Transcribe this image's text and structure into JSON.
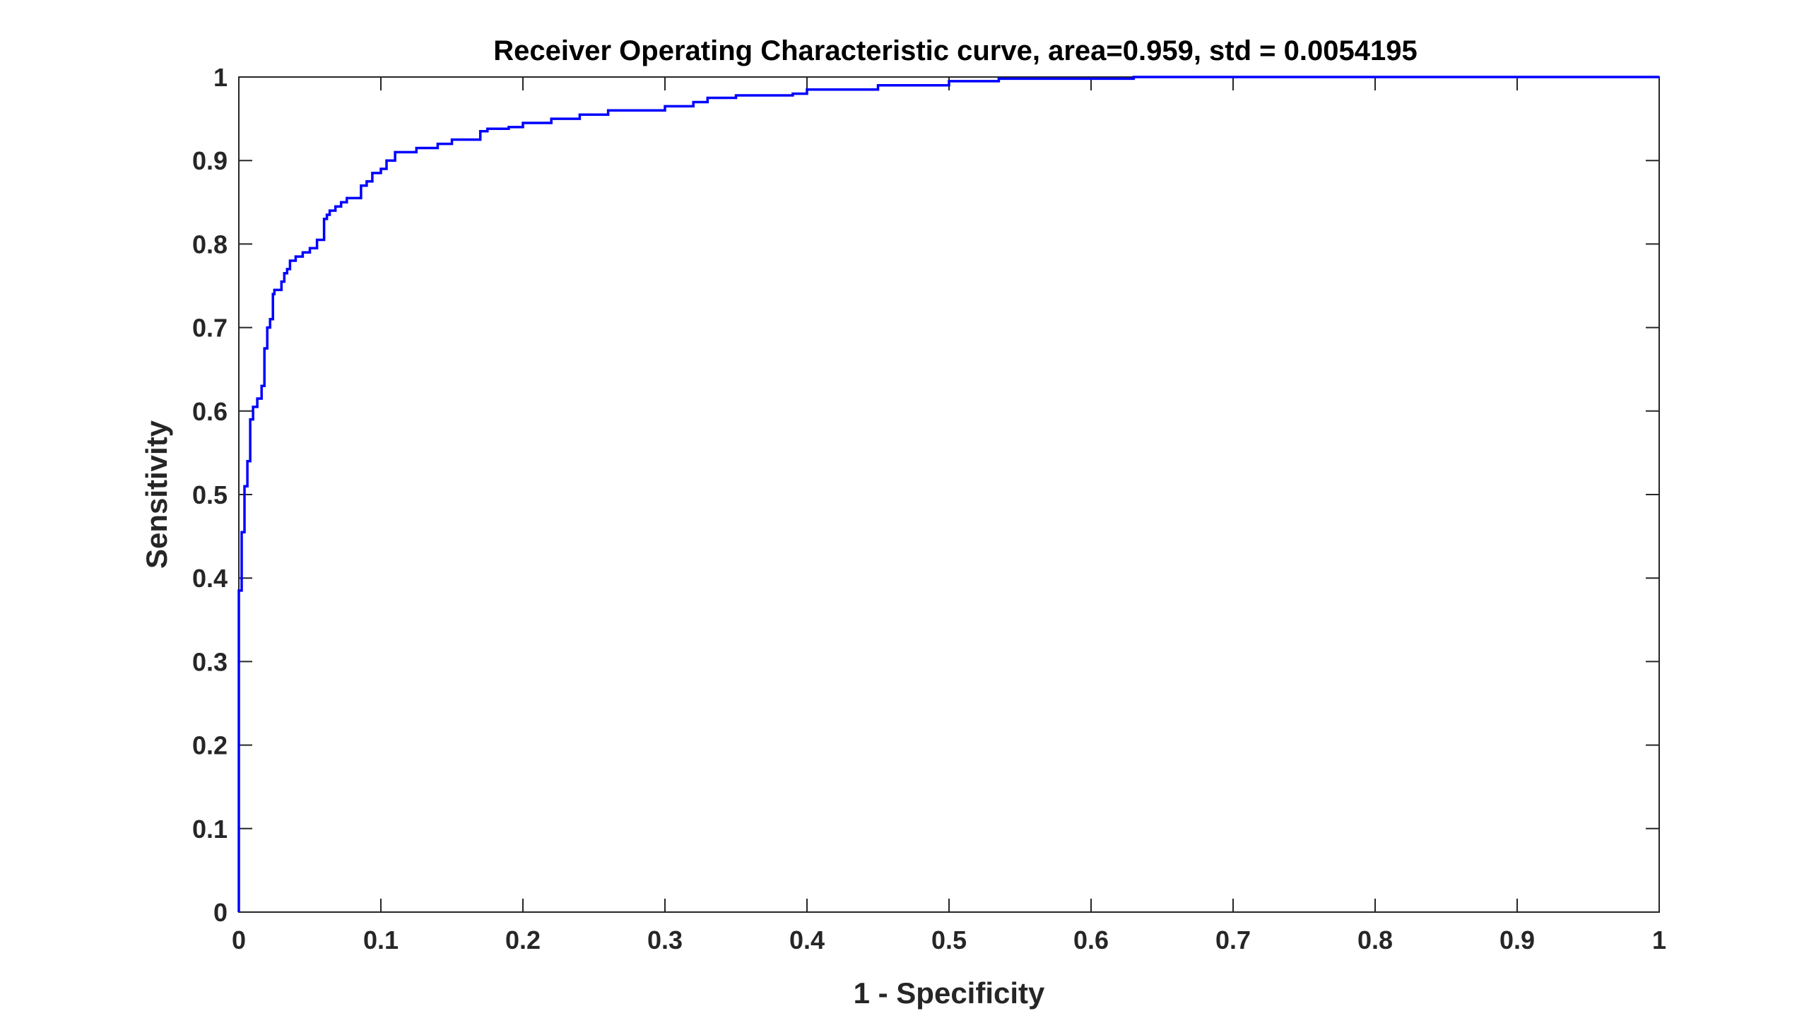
{
  "chart_data": {
    "type": "line",
    "title": "Receiver Operating Characteristic curve, area=0.959, std = 0.0054195",
    "xlabel": "1 - Specificity",
    "ylabel": "Sensitivity",
    "xlim": [
      0,
      1
    ],
    "ylim": [
      0,
      1
    ],
    "xticks": [
      "0",
      "0.1",
      "0.2",
      "0.3",
      "0.4",
      "0.5",
      "0.6",
      "0.7",
      "0.8",
      "0.9",
      "1"
    ],
    "yticks": [
      "0",
      "0.1",
      "0.2",
      "0.3",
      "0.4",
      "0.5",
      "0.6",
      "0.7",
      "0.8",
      "0.9",
      "1"
    ],
    "grid": false,
    "legend": "none",
    "series_color": "#0000ff",
    "series": [
      {
        "x": [
          0,
          0,
          0.002,
          0.002,
          0.004,
          0.004,
          0.006,
          0.006,
          0.008,
          0.008,
          0.01,
          0.01,
          0.013,
          0.013,
          0.016,
          0.016,
          0.018,
          0.018,
          0.02,
          0.02,
          0.022,
          0.022,
          0.024,
          0.024,
          0.025,
          0.025,
          0.03,
          0.03,
          0.032,
          0.032,
          0.034,
          0.034,
          0.036,
          0.036,
          0.04,
          0.04,
          0.045,
          0.045,
          0.05,
          0.05,
          0.055,
          0.055,
          0.06,
          0.06,
          0.062,
          0.062,
          0.064,
          0.064,
          0.068,
          0.068,
          0.072,
          0.072,
          0.076,
          0.076,
          0.086,
          0.086,
          0.09,
          0.09,
          0.094,
          0.094,
          0.1,
          0.1,
          0.104,
          0.104,
          0.11,
          0.11,
          0.125,
          0.125,
          0.14,
          0.14,
          0.15,
          0.15,
          0.17,
          0.17,
          0.175,
          0.175,
          0.19,
          0.19,
          0.2,
          0.2,
          0.22,
          0.22,
          0.24,
          0.24,
          0.26,
          0.26,
          0.3,
          0.3,
          0.32,
          0.32,
          0.33,
          0.33,
          0.35,
          0.35,
          0.39,
          0.39,
          0.4,
          0.4,
          0.45,
          0.45,
          0.5,
          0.5,
          0.535,
          0.535,
          0.63,
          0.63,
          1.0
        ],
        "y": [
          0,
          0.385,
          0.385,
          0.455,
          0.455,
          0.51,
          0.51,
          0.54,
          0.54,
          0.59,
          0.59,
          0.605,
          0.605,
          0.615,
          0.615,
          0.63,
          0.63,
          0.675,
          0.675,
          0.7,
          0.7,
          0.71,
          0.71,
          0.74,
          0.74,
          0.745,
          0.745,
          0.755,
          0.755,
          0.765,
          0.765,
          0.77,
          0.77,
          0.78,
          0.78,
          0.785,
          0.785,
          0.79,
          0.79,
          0.795,
          0.795,
          0.805,
          0.805,
          0.83,
          0.83,
          0.835,
          0.835,
          0.84,
          0.84,
          0.845,
          0.845,
          0.85,
          0.85,
          0.855,
          0.855,
          0.87,
          0.87,
          0.875,
          0.875,
          0.885,
          0.885,
          0.89,
          0.89,
          0.9,
          0.9,
          0.91,
          0.91,
          0.915,
          0.915,
          0.92,
          0.92,
          0.925,
          0.925,
          0.935,
          0.935,
          0.938,
          0.938,
          0.94,
          0.94,
          0.945,
          0.945,
          0.95,
          0.95,
          0.955,
          0.955,
          0.96,
          0.96,
          0.965,
          0.965,
          0.97,
          0.97,
          0.975,
          0.975,
          0.978,
          0.978,
          0.98,
          0.98,
          0.985,
          0.985,
          0.99,
          0.99,
          0.995,
          0.995,
          0.998,
          0.998,
          1.0,
          1.0
        ]
      }
    ]
  }
}
